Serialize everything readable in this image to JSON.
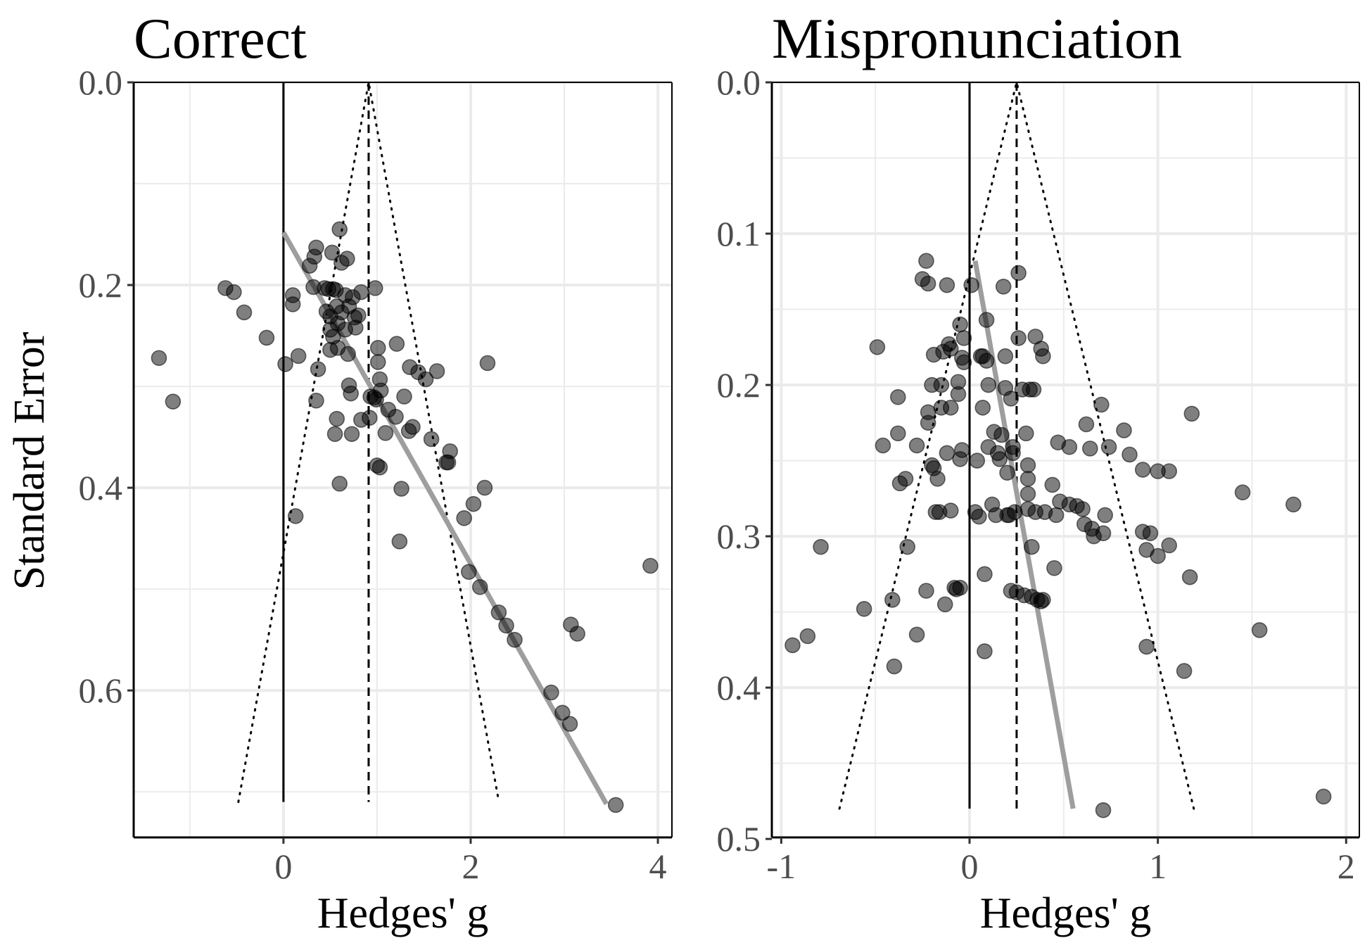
{
  "colors": {
    "grid": "#ebebeb",
    "point_fill": "#000000",
    "regression_line": "#9e9e9e",
    "frame": "#000000"
  },
  "shared": {
    "ylabel": "Standard Error",
    "xlabel": "Hedges' g"
  },
  "chart_data": [
    {
      "type": "scatter",
      "title": "Correct",
      "xlabel": "Hedges' g",
      "ylabel": "Standard Error",
      "xlim": [
        -1.6,
        4.15
      ],
      "ylim": [
        0.0,
        0.745
      ],
      "y_reversed": true,
      "grid": true,
      "xticks": [
        0,
        2,
        4
      ],
      "xtick_labels": [
        "0",
        "2",
        "4"
      ],
      "yticks": [
        0.0,
        0.2,
        0.4,
        0.6
      ],
      "ytick_labels": [
        "0.0",
        "0.2",
        "0.4",
        "0.6"
      ],
      "reference_lines": {
        "zero_line_x": 0,
        "mean_effect_x": 0.91,
        "se_max": 0.71,
        "funnel_ci_z": 1.96
      },
      "regression_line": {
        "x": [
          0,
          3.45
        ],
        "y": [
          0.148,
          0.712
        ]
      },
      "points": [
        {
          "x": -1.33,
          "y": 0.272
        },
        {
          "x": -1.18,
          "y": 0.315
        },
        {
          "x": -0.62,
          "y": 0.203
        },
        {
          "x": -0.53,
          "y": 0.207
        },
        {
          "x": -0.42,
          "y": 0.227
        },
        {
          "x": -0.18,
          "y": 0.252
        },
        {
          "x": 0.02,
          "y": 0.278
        },
        {
          "x": 0.1,
          "y": 0.219
        },
        {
          "x": 0.1,
          "y": 0.21
        },
        {
          "x": 0.16,
          "y": 0.27
        },
        {
          "x": 0.13,
          "y": 0.428
        },
        {
          "x": 0.28,
          "y": 0.181
        },
        {
          "x": 0.32,
          "y": 0.202
        },
        {
          "x": 0.33,
          "y": 0.172
        },
        {
          "x": 0.35,
          "y": 0.163
        },
        {
          "x": 0.35,
          "y": 0.314
        },
        {
          "x": 0.37,
          "y": 0.283
        },
        {
          "x": 0.44,
          "y": 0.203
        },
        {
          "x": 0.46,
          "y": 0.226
        },
        {
          "x": 0.48,
          "y": 0.204
        },
        {
          "x": 0.5,
          "y": 0.231
        },
        {
          "x": 0.5,
          "y": 0.244
        },
        {
          "x": 0.5,
          "y": 0.264
        },
        {
          "x": 0.52,
          "y": 0.168
        },
        {
          "x": 0.53,
          "y": 0.251
        },
        {
          "x": 0.53,
          "y": 0.204
        },
        {
          "x": 0.55,
          "y": 0.347
        },
        {
          "x": 0.56,
          "y": 0.205
        },
        {
          "x": 0.57,
          "y": 0.332
        },
        {
          "x": 0.57,
          "y": 0.221
        },
        {
          "x": 0.58,
          "y": 0.238
        },
        {
          "x": 0.58,
          "y": 0.262
        },
        {
          "x": 0.6,
          "y": 0.396
        },
        {
          "x": 0.6,
          "y": 0.145
        },
        {
          "x": 0.62,
          "y": 0.178
        },
        {
          "x": 0.62,
          "y": 0.227
        },
        {
          "x": 0.66,
          "y": 0.21
        },
        {
          "x": 0.66,
          "y": 0.244
        },
        {
          "x": 0.68,
          "y": 0.174
        },
        {
          "x": 0.69,
          "y": 0.268
        },
        {
          "x": 0.7,
          "y": 0.221
        },
        {
          "x": 0.7,
          "y": 0.299
        },
        {
          "x": 0.72,
          "y": 0.307
        },
        {
          "x": 0.73,
          "y": 0.347
        },
        {
          "x": 0.74,
          "y": 0.212
        },
        {
          "x": 0.76,
          "y": 0.232
        },
        {
          "x": 0.77,
          "y": 0.242
        },
        {
          "x": 0.8,
          "y": 0.23
        },
        {
          "x": 0.83,
          "y": 0.207
        },
        {
          "x": 0.83,
          "y": 0.333
        },
        {
          "x": 0.92,
          "y": 0.331
        },
        {
          "x": 0.93,
          "y": 0.31
        },
        {
          "x": 0.97,
          "y": 0.311
        },
        {
          "x": 0.98,
          "y": 0.203
        },
        {
          "x": 0.99,
          "y": 0.313
        },
        {
          "x": 1.0,
          "y": 0.378
        },
        {
          "x": 1.01,
          "y": 0.276
        },
        {
          "x": 1.01,
          "y": 0.262
        },
        {
          "x": 1.03,
          "y": 0.293
        },
        {
          "x": 1.03,
          "y": 0.38
        },
        {
          "x": 1.04,
          "y": 0.304
        },
        {
          "x": 1.09,
          "y": 0.346
        },
        {
          "x": 1.12,
          "y": 0.323
        },
        {
          "x": 1.2,
          "y": 0.33
        },
        {
          "x": 1.21,
          "y": 0.258
        },
        {
          "x": 1.24,
          "y": 0.453
        },
        {
          "x": 1.26,
          "y": 0.401
        },
        {
          "x": 1.29,
          "y": 0.31
        },
        {
          "x": 1.34,
          "y": 0.344
        },
        {
          "x": 1.35,
          "y": 0.281
        },
        {
          "x": 1.38,
          "y": 0.34
        },
        {
          "x": 1.44,
          "y": 0.286
        },
        {
          "x": 1.52,
          "y": 0.293
        },
        {
          "x": 1.58,
          "y": 0.352
        },
        {
          "x": 1.64,
          "y": 0.285
        },
        {
          "x": 1.74,
          "y": 0.375
        },
        {
          "x": 1.76,
          "y": 0.375
        },
        {
          "x": 1.78,
          "y": 0.364
        },
        {
          "x": 1.93,
          "y": 0.43
        },
        {
          "x": 1.98,
          "y": 0.483
        },
        {
          "x": 2.03,
          "y": 0.416
        },
        {
          "x": 2.1,
          "y": 0.498
        },
        {
          "x": 2.15,
          "y": 0.4
        },
        {
          "x": 2.18,
          "y": 0.277
        },
        {
          "x": 2.3,
          "y": 0.523
        },
        {
          "x": 2.38,
          "y": 0.536
        },
        {
          "x": 2.47,
          "y": 0.55
        },
        {
          "x": 2.86,
          "y": 0.602
        },
        {
          "x": 2.98,
          "y": 0.622
        },
        {
          "x": 3.06,
          "y": 0.633
        },
        {
          "x": 3.07,
          "y": 0.535
        },
        {
          "x": 3.14,
          "y": 0.544
        },
        {
          "x": 3.55,
          "y": 0.713
        },
        {
          "x": 3.92,
          "y": 0.477
        }
      ]
    },
    {
      "type": "scatter",
      "title": "Mispronunciation",
      "xlabel": "Hedges' g",
      "ylabel": "",
      "xlim": [
        -1.05,
        2.07
      ],
      "ylim": [
        0.0,
        0.499
      ],
      "y_reversed": true,
      "grid": true,
      "xticks": [
        -1,
        0,
        1,
        2
      ],
      "xtick_labels": [
        "-1",
        "0",
        "1",
        "2"
      ],
      "yticks": [
        0.0,
        0.1,
        0.2,
        0.3,
        0.4,
        0.5
      ],
      "ytick_labels": [
        "0.0",
        "0.1",
        "0.2",
        "0.3",
        "0.4",
        "0.5"
      ],
      "reference_lines": {
        "zero_line_x": 0,
        "mean_effect_x": 0.25,
        "se_max": 0.48,
        "funnel_ci_z": 1.96
      },
      "regression_line": {
        "x": [
          0.03,
          0.55
        ],
        "y": [
          0.118,
          0.48
        ]
      },
      "points": [
        {
          "x": -0.94,
          "y": 0.372
        },
        {
          "x": -0.86,
          "y": 0.366
        },
        {
          "x": -0.79,
          "y": 0.307
        },
        {
          "x": -0.56,
          "y": 0.348
        },
        {
          "x": -0.49,
          "y": 0.175
        },
        {
          "x": -0.46,
          "y": 0.24
        },
        {
          "x": -0.41,
          "y": 0.342
        },
        {
          "x": -0.4,
          "y": 0.386
        },
        {
          "x": -0.38,
          "y": 0.208
        },
        {
          "x": -0.38,
          "y": 0.232
        },
        {
          "x": -0.37,
          "y": 0.265
        },
        {
          "x": -0.34,
          "y": 0.262
        },
        {
          "x": -0.33,
          "y": 0.307
        },
        {
          "x": -0.28,
          "y": 0.24
        },
        {
          "x": -0.28,
          "y": 0.365
        },
        {
          "x": -0.25,
          "y": 0.13
        },
        {
          "x": -0.23,
          "y": 0.118
        },
        {
          "x": -0.23,
          "y": 0.336
        },
        {
          "x": -0.22,
          "y": 0.133
        },
        {
          "x": -0.22,
          "y": 0.225
        },
        {
          "x": -0.22,
          "y": 0.218
        },
        {
          "x": -0.2,
          "y": 0.2
        },
        {
          "x": -0.2,
          "y": 0.253
        },
        {
          "x": -0.19,
          "y": 0.255
        },
        {
          "x": -0.19,
          "y": 0.18
        },
        {
          "x": -0.18,
          "y": 0.284
        },
        {
          "x": -0.17,
          "y": 0.262
        },
        {
          "x": -0.16,
          "y": 0.284
        },
        {
          "x": -0.15,
          "y": 0.215
        },
        {
          "x": -0.15,
          "y": 0.2
        },
        {
          "x": -0.14,
          "y": 0.178
        },
        {
          "x": -0.13,
          "y": 0.345
        },
        {
          "x": -0.12,
          "y": 0.245
        },
        {
          "x": -0.12,
          "y": 0.134
        },
        {
          "x": -0.11,
          "y": 0.173
        },
        {
          "x": -0.1,
          "y": 0.176
        },
        {
          "x": -0.1,
          "y": 0.283
        },
        {
          "x": -0.1,
          "y": 0.215
        },
        {
          "x": -0.08,
          "y": 0.334
        },
        {
          "x": -0.07,
          "y": 0.335
        },
        {
          "x": -0.06,
          "y": 0.206
        },
        {
          "x": -0.06,
          "y": 0.198
        },
        {
          "x": -0.05,
          "y": 0.249
        },
        {
          "x": -0.05,
          "y": 0.16
        },
        {
          "x": -0.05,
          "y": 0.334
        },
        {
          "x": -0.04,
          "y": 0.243
        },
        {
          "x": -0.04,
          "y": 0.182
        },
        {
          "x": -0.03,
          "y": 0.185
        },
        {
          "x": -0.03,
          "y": 0.169
        },
        {
          "x": 0.01,
          "y": 0.134
        },
        {
          "x": 0.03,
          "y": 0.284
        },
        {
          "x": 0.04,
          "y": 0.25
        },
        {
          "x": 0.05,
          "y": 0.287
        },
        {
          "x": 0.06,
          "y": 0.181
        },
        {
          "x": 0.07,
          "y": 0.181
        },
        {
          "x": 0.07,
          "y": 0.215
        },
        {
          "x": 0.08,
          "y": 0.325
        },
        {
          "x": 0.08,
          "y": 0.376
        },
        {
          "x": 0.09,
          "y": 0.157
        },
        {
          "x": 0.09,
          "y": 0.184
        },
        {
          "x": 0.1,
          "y": 0.241
        },
        {
          "x": 0.1,
          "y": 0.2
        },
        {
          "x": 0.12,
          "y": 0.279
        },
        {
          "x": 0.13,
          "y": 0.231
        },
        {
          "x": 0.14,
          "y": 0.286
        },
        {
          "x": 0.15,
          "y": 0.245
        },
        {
          "x": 0.16,
          "y": 0.249
        },
        {
          "x": 0.17,
          "y": 0.233
        },
        {
          "x": 0.18,
          "y": 0.135
        },
        {
          "x": 0.19,
          "y": 0.181
        },
        {
          "x": 0.19,
          "y": 0.202
        },
        {
          "x": 0.2,
          "y": 0.286
        },
        {
          "x": 0.2,
          "y": 0.258
        },
        {
          "x": 0.21,
          "y": 0.286
        },
        {
          "x": 0.22,
          "y": 0.336
        },
        {
          "x": 0.22,
          "y": 0.209
        },
        {
          "x": 0.23,
          "y": 0.241
        },
        {
          "x": 0.23,
          "y": 0.245
        },
        {
          "x": 0.24,
          "y": 0.284
        },
        {
          "x": 0.25,
          "y": 0.337
        },
        {
          "x": 0.26,
          "y": 0.126
        },
        {
          "x": 0.26,
          "y": 0.169
        },
        {
          "x": 0.28,
          "y": 0.203
        },
        {
          "x": 0.29,
          "y": 0.339
        },
        {
          "x": 0.3,
          "y": 0.232
        },
        {
          "x": 0.31,
          "y": 0.253
        },
        {
          "x": 0.31,
          "y": 0.282
        },
        {
          "x": 0.31,
          "y": 0.262
        },
        {
          "x": 0.31,
          "y": 0.272
        },
        {
          "x": 0.32,
          "y": 0.203
        },
        {
          "x": 0.33,
          "y": 0.307
        },
        {
          "x": 0.33,
          "y": 0.34
        },
        {
          "x": 0.34,
          "y": 0.203
        },
        {
          "x": 0.35,
          "y": 0.168
        },
        {
          "x": 0.35,
          "y": 0.284
        },
        {
          "x": 0.36,
          "y": 0.342
        },
        {
          "x": 0.38,
          "y": 0.176
        },
        {
          "x": 0.38,
          "y": 0.343
        },
        {
          "x": 0.39,
          "y": 0.181
        },
        {
          "x": 0.39,
          "y": 0.342
        },
        {
          "x": 0.4,
          "y": 0.284
        },
        {
          "x": 0.44,
          "y": 0.266
        },
        {
          "x": 0.45,
          "y": 0.321
        },
        {
          "x": 0.46,
          "y": 0.286
        },
        {
          "x": 0.47,
          "y": 0.238
        },
        {
          "x": 0.48,
          "y": 0.277
        },
        {
          "x": 0.53,
          "y": 0.241
        },
        {
          "x": 0.53,
          "y": 0.279
        },
        {
          "x": 0.57,
          "y": 0.28
        },
        {
          "x": 0.6,
          "y": 0.282
        },
        {
          "x": 0.61,
          "y": 0.292
        },
        {
          "x": 0.62,
          "y": 0.226
        },
        {
          "x": 0.64,
          "y": 0.242
        },
        {
          "x": 0.65,
          "y": 0.295
        },
        {
          "x": 0.66,
          "y": 0.3
        },
        {
          "x": 0.7,
          "y": 0.213
        },
        {
          "x": 0.71,
          "y": 0.298
        },
        {
          "x": 0.71,
          "y": 0.481
        },
        {
          "x": 0.72,
          "y": 0.286
        },
        {
          "x": 0.74,
          "y": 0.241
        },
        {
          "x": 0.82,
          "y": 0.23
        },
        {
          "x": 0.85,
          "y": 0.246
        },
        {
          "x": 0.92,
          "y": 0.297
        },
        {
          "x": 0.92,
          "y": 0.256
        },
        {
          "x": 0.94,
          "y": 0.309
        },
        {
          "x": 0.94,
          "y": 0.373
        },
        {
          "x": 0.96,
          "y": 0.298
        },
        {
          "x": 1.0,
          "y": 0.257
        },
        {
          "x": 1.0,
          "y": 0.313
        },
        {
          "x": 1.06,
          "y": 0.257
        },
        {
          "x": 1.06,
          "y": 0.306
        },
        {
          "x": 1.14,
          "y": 0.389
        },
        {
          "x": 1.17,
          "y": 0.327
        },
        {
          "x": 1.18,
          "y": 0.219
        },
        {
          "x": 1.45,
          "y": 0.271
        },
        {
          "x": 1.54,
          "y": 0.362
        },
        {
          "x": 1.72,
          "y": 0.279
        },
        {
          "x": 1.88,
          "y": 0.472
        }
      ]
    }
  ]
}
